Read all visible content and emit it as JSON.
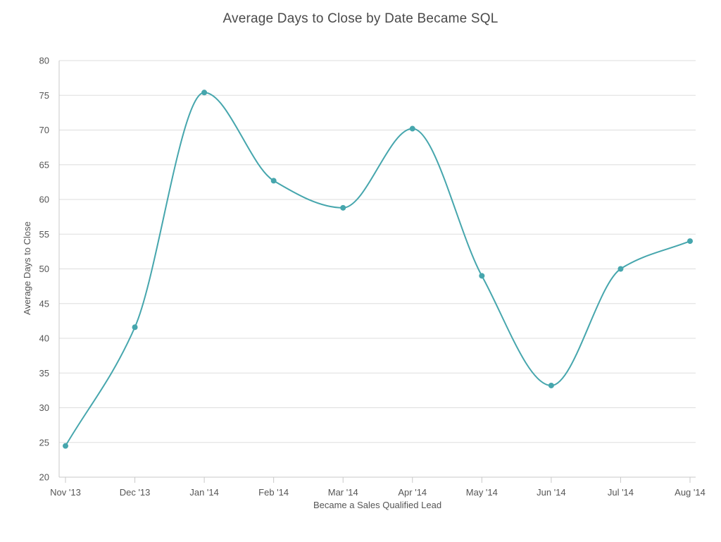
{
  "chart_data": {
    "type": "line",
    "title": "Average Days to Close by Date Became SQL",
    "xlabel": "Became a Sales Qualified Lead",
    "ylabel": "Average Days to Close",
    "categories": [
      "Nov '13",
      "Dec '13",
      "Jan '14",
      "Feb '14",
      "Mar '14",
      "Apr '14",
      "May '14",
      "Jun '14",
      "Jul '14",
      "Aug '14"
    ],
    "x": [
      "2013-11-01",
      "2013-12-01",
      "2014-01-01",
      "2014-02-01",
      "2014-03-01",
      "2014-04-01",
      "2014-05-01",
      "2014-06-01",
      "2014-07-01",
      "2014-08-01"
    ],
    "series": [
      {
        "values": [
          24.5,
          41.6,
          75.4,
          62.7,
          58.8,
          70.2,
          49.0,
          33.2,
          50.0,
          54.0
        ],
        "color": "#46a6ad"
      }
    ],
    "ylim": [
      20,
      80
    ],
    "yticks": [
      20,
      25,
      30,
      35,
      40,
      45,
      50,
      55,
      60,
      65,
      70,
      75,
      80
    ],
    "grid": true,
    "smooth": true,
    "markers": true,
    "gridcolor": "#dddddd",
    "axiscolor": "#c8c8c8"
  }
}
